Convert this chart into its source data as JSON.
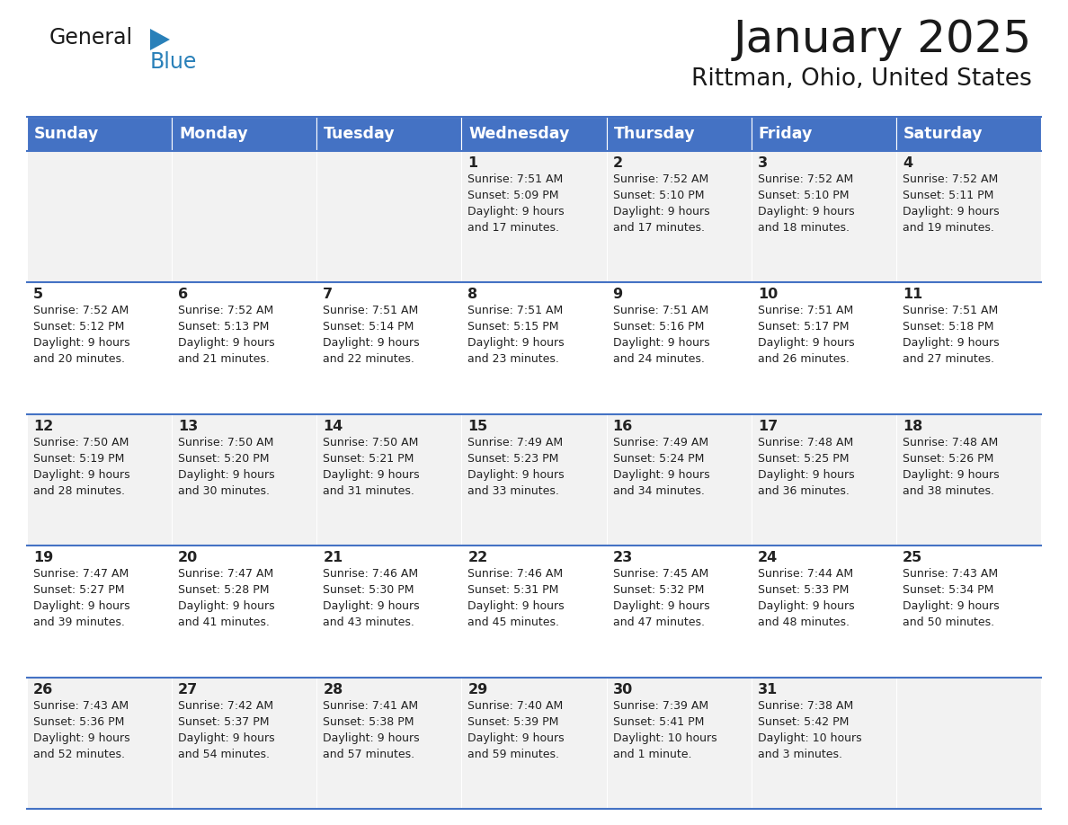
{
  "title": "January 2025",
  "subtitle": "Rittman, Ohio, United States",
  "header_bg": "#4472C4",
  "header_text_color": "#FFFFFF",
  "cell_bg_odd": "#F2F2F2",
  "cell_bg_even": "#FFFFFF",
  "border_color": "#4472C4",
  "text_color": "#222222",
  "days_of_week": [
    "Sunday",
    "Monday",
    "Tuesday",
    "Wednesday",
    "Thursday",
    "Friday",
    "Saturday"
  ],
  "calendar": [
    [
      {
        "day": "",
        "sunrise": "",
        "sunset": "",
        "daylight": ""
      },
      {
        "day": "",
        "sunrise": "",
        "sunset": "",
        "daylight": ""
      },
      {
        "day": "",
        "sunrise": "",
        "sunset": "",
        "daylight": ""
      },
      {
        "day": "1",
        "sunrise": "7:51 AM",
        "sunset": "5:09 PM",
        "daylight": "9 hours\nand 17 minutes."
      },
      {
        "day": "2",
        "sunrise": "7:52 AM",
        "sunset": "5:10 PM",
        "daylight": "9 hours\nand 17 minutes."
      },
      {
        "day": "3",
        "sunrise": "7:52 AM",
        "sunset": "5:10 PM",
        "daylight": "9 hours\nand 18 minutes."
      },
      {
        "day": "4",
        "sunrise": "7:52 AM",
        "sunset": "5:11 PM",
        "daylight": "9 hours\nand 19 minutes."
      }
    ],
    [
      {
        "day": "5",
        "sunrise": "7:52 AM",
        "sunset": "5:12 PM",
        "daylight": "9 hours\nand 20 minutes."
      },
      {
        "day": "6",
        "sunrise": "7:52 AM",
        "sunset": "5:13 PM",
        "daylight": "9 hours\nand 21 minutes."
      },
      {
        "day": "7",
        "sunrise": "7:51 AM",
        "sunset": "5:14 PM",
        "daylight": "9 hours\nand 22 minutes."
      },
      {
        "day": "8",
        "sunrise": "7:51 AM",
        "sunset": "5:15 PM",
        "daylight": "9 hours\nand 23 minutes."
      },
      {
        "day": "9",
        "sunrise": "7:51 AM",
        "sunset": "5:16 PM",
        "daylight": "9 hours\nand 24 minutes."
      },
      {
        "day": "10",
        "sunrise": "7:51 AM",
        "sunset": "5:17 PM",
        "daylight": "9 hours\nand 26 minutes."
      },
      {
        "day": "11",
        "sunrise": "7:51 AM",
        "sunset": "5:18 PM",
        "daylight": "9 hours\nand 27 minutes."
      }
    ],
    [
      {
        "day": "12",
        "sunrise": "7:50 AM",
        "sunset": "5:19 PM",
        "daylight": "9 hours\nand 28 minutes."
      },
      {
        "day": "13",
        "sunrise": "7:50 AM",
        "sunset": "5:20 PM",
        "daylight": "9 hours\nand 30 minutes."
      },
      {
        "day": "14",
        "sunrise": "7:50 AM",
        "sunset": "5:21 PM",
        "daylight": "9 hours\nand 31 minutes."
      },
      {
        "day": "15",
        "sunrise": "7:49 AM",
        "sunset": "5:23 PM",
        "daylight": "9 hours\nand 33 minutes."
      },
      {
        "day": "16",
        "sunrise": "7:49 AM",
        "sunset": "5:24 PM",
        "daylight": "9 hours\nand 34 minutes."
      },
      {
        "day": "17",
        "sunrise": "7:48 AM",
        "sunset": "5:25 PM",
        "daylight": "9 hours\nand 36 minutes."
      },
      {
        "day": "18",
        "sunrise": "7:48 AM",
        "sunset": "5:26 PM",
        "daylight": "9 hours\nand 38 minutes."
      }
    ],
    [
      {
        "day": "19",
        "sunrise": "7:47 AM",
        "sunset": "5:27 PM",
        "daylight": "9 hours\nand 39 minutes."
      },
      {
        "day": "20",
        "sunrise": "7:47 AM",
        "sunset": "5:28 PM",
        "daylight": "9 hours\nand 41 minutes."
      },
      {
        "day": "21",
        "sunrise": "7:46 AM",
        "sunset": "5:30 PM",
        "daylight": "9 hours\nand 43 minutes."
      },
      {
        "day": "22",
        "sunrise": "7:46 AM",
        "sunset": "5:31 PM",
        "daylight": "9 hours\nand 45 minutes."
      },
      {
        "day": "23",
        "sunrise": "7:45 AM",
        "sunset": "5:32 PM",
        "daylight": "9 hours\nand 47 minutes."
      },
      {
        "day": "24",
        "sunrise": "7:44 AM",
        "sunset": "5:33 PM",
        "daylight": "9 hours\nand 48 minutes."
      },
      {
        "day": "25",
        "sunrise": "7:43 AM",
        "sunset": "5:34 PM",
        "daylight": "9 hours\nand 50 minutes."
      }
    ],
    [
      {
        "day": "26",
        "sunrise": "7:43 AM",
        "sunset": "5:36 PM",
        "daylight": "9 hours\nand 52 minutes."
      },
      {
        "day": "27",
        "sunrise": "7:42 AM",
        "sunset": "5:37 PM",
        "daylight": "9 hours\nand 54 minutes."
      },
      {
        "day": "28",
        "sunrise": "7:41 AM",
        "sunset": "5:38 PM",
        "daylight": "9 hours\nand 57 minutes."
      },
      {
        "day": "29",
        "sunrise": "7:40 AM",
        "sunset": "5:39 PM",
        "daylight": "9 hours\nand 59 minutes."
      },
      {
        "day": "30",
        "sunrise": "7:39 AM",
        "sunset": "5:41 PM",
        "daylight": "10 hours\nand 1 minute."
      },
      {
        "day": "31",
        "sunrise": "7:38 AM",
        "sunset": "5:42 PM",
        "daylight": "10 hours\nand 3 minutes."
      },
      {
        "day": "",
        "sunrise": "",
        "sunset": "",
        "daylight": ""
      }
    ]
  ]
}
